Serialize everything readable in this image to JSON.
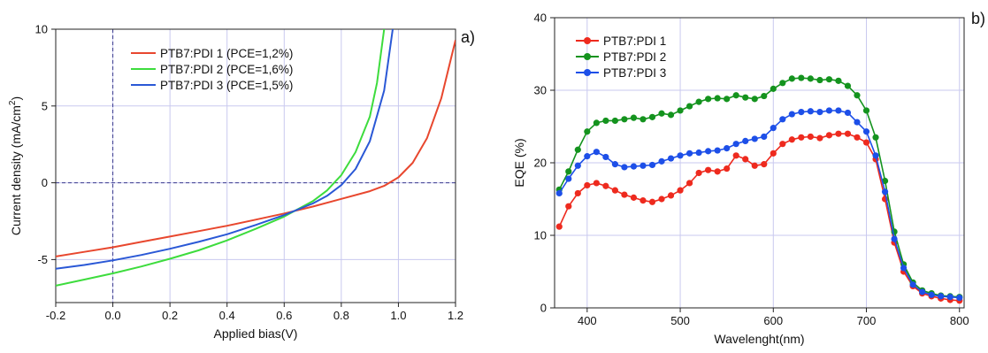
{
  "chart_data": [
    {
      "id": "a",
      "type": "line",
      "panel_label": "a)",
      "xlabel": "Applied bias(V)",
      "ylabel": "Current density (mA/cm",
      "ylabel_sup": "2",
      "ylabel_end": ")",
      "xlim": [
        -0.2,
        1.2
      ],
      "ylim": [
        -7.8,
        10
      ],
      "xticks": [
        -0.2,
        0.0,
        0.2,
        0.4,
        0.6,
        0.8,
        1.0,
        1.2
      ],
      "xtick_labels": [
        "-0.2",
        "0.0",
        "0.2",
        "0.4",
        "0.6",
        "0.8",
        "1.0",
        "1.2"
      ],
      "yticks": [
        -5,
        0,
        5,
        10
      ],
      "ytick_labels": [
        "-5",
        "0",
        "5",
        "10"
      ],
      "grid": true,
      "legend_position": "top",
      "series": [
        {
          "name": "PTB7:PDI 1 (PCE=1,2%)",
          "color": "#e8472e",
          "x": [
            -0.2,
            -0.1,
            0.0,
            0.1,
            0.2,
            0.3,
            0.4,
            0.5,
            0.6,
            0.7,
            0.8,
            0.9,
            0.95,
            1.0,
            1.05,
            1.1,
            1.15,
            1.2
          ],
          "y": [
            -4.8,
            -4.5,
            -4.2,
            -3.85,
            -3.5,
            -3.15,
            -2.8,
            -2.4,
            -2.0,
            -1.55,
            -1.05,
            -0.55,
            -0.2,
            0.35,
            1.3,
            2.9,
            5.5,
            9.3
          ]
        },
        {
          "name": "PTB7:PDI 2 (PCE=1,6%)",
          "color": "#3ddc3d",
          "x": [
            -0.2,
            -0.1,
            0.0,
            0.1,
            0.2,
            0.3,
            0.4,
            0.5,
            0.6,
            0.7,
            0.75,
            0.8,
            0.85,
            0.9,
            0.925,
            0.95
          ],
          "y": [
            -6.7,
            -6.3,
            -5.9,
            -5.45,
            -4.95,
            -4.4,
            -3.75,
            -3.0,
            -2.2,
            -1.2,
            -0.5,
            0.5,
            2.0,
            4.3,
            6.5,
            10.0
          ]
        },
        {
          "name": "PTB7:PDI 3 (PCE=1,5%)",
          "color": "#2a58d6",
          "x": [
            -0.2,
            -0.1,
            0.0,
            0.1,
            0.2,
            0.3,
            0.4,
            0.5,
            0.6,
            0.7,
            0.75,
            0.8,
            0.85,
            0.9,
            0.95,
            0.98
          ],
          "y": [
            -5.6,
            -5.35,
            -5.05,
            -4.7,
            -4.3,
            -3.85,
            -3.35,
            -2.75,
            -2.1,
            -1.35,
            -0.85,
            -0.15,
            0.9,
            2.7,
            6.0,
            10.0
          ]
        }
      ]
    },
    {
      "id": "b",
      "type": "line",
      "panel_label": "b)",
      "xlabel": "Wavelenght(nm)",
      "ylabel": "EQE (%)",
      "xlim": [
        365,
        805
      ],
      "ylim": [
        0,
        40
      ],
      "xticks": [
        400,
        500,
        600,
        700,
        800
      ],
      "xtick_labels": [
        "400",
        "500",
        "600",
        "700",
        "800"
      ],
      "yticks": [
        0,
        10,
        20,
        30,
        40
      ],
      "ytick_labels": [
        "0",
        "10",
        "20",
        "30",
        "40"
      ],
      "grid": true,
      "legend_position": "top-left",
      "markers": true,
      "series": [
        {
          "name": "PTB7:PDI 1",
          "color": "#ee2a1e",
          "x": [
            370,
            380,
            390,
            400,
            410,
            420,
            430,
            440,
            450,
            460,
            470,
            480,
            490,
            500,
            510,
            520,
            530,
            540,
            550,
            560,
            570,
            580,
            590,
            600,
            610,
            620,
            630,
            640,
            650,
            660,
            670,
            680,
            690,
            700,
            710,
            720,
            730,
            740,
            750,
            760,
            770,
            780,
            790,
            800
          ],
          "y": [
            11.2,
            14.0,
            15.8,
            16.9,
            17.2,
            16.8,
            16.2,
            15.6,
            15.2,
            14.8,
            14.6,
            15.0,
            15.5,
            16.2,
            17.2,
            18.6,
            19.0,
            18.8,
            19.2,
            21.0,
            20.5,
            19.6,
            19.8,
            21.3,
            22.6,
            23.2,
            23.5,
            23.6,
            23.4,
            23.8,
            24.0,
            24.0,
            23.5,
            22.8,
            20.5,
            15.0,
            9.0,
            5.0,
            3.0,
            2.0,
            1.6,
            1.3,
            1.1,
            1.0
          ]
        },
        {
          "name": "PTB7:PDI 2",
          "color": "#14931e",
          "x": [
            370,
            380,
            390,
            400,
            410,
            420,
            430,
            440,
            450,
            460,
            470,
            480,
            490,
            500,
            510,
            520,
            530,
            540,
            550,
            560,
            570,
            580,
            590,
            600,
            610,
            620,
            630,
            640,
            650,
            660,
            670,
            680,
            690,
            700,
            710,
            720,
            730,
            740,
            750,
            760,
            770,
            780,
            790,
            800
          ],
          "y": [
            16.3,
            18.8,
            21.8,
            24.3,
            25.5,
            25.8,
            25.8,
            26.0,
            26.2,
            26.0,
            26.3,
            26.8,
            26.6,
            27.2,
            27.8,
            28.4,
            28.8,
            28.9,
            28.8,
            29.3,
            29.0,
            28.8,
            29.2,
            30.2,
            31.0,
            31.6,
            31.7,
            31.6,
            31.4,
            31.5,
            31.3,
            30.6,
            29.3,
            27.2,
            23.5,
            17.5,
            10.5,
            6.0,
            3.5,
            2.4,
            2.0,
            1.7,
            1.6,
            1.5
          ]
        },
        {
          "name": "PTB7:PDI 3",
          "color": "#1d4fe8",
          "x": [
            370,
            380,
            390,
            400,
            410,
            420,
            430,
            440,
            450,
            460,
            470,
            480,
            490,
            500,
            510,
            520,
            530,
            540,
            550,
            560,
            570,
            580,
            590,
            600,
            610,
            620,
            630,
            640,
            650,
            660,
            670,
            680,
            690,
            700,
            710,
            720,
            730,
            740,
            750,
            760,
            770,
            780,
            790,
            800
          ],
          "y": [
            15.8,
            17.8,
            19.6,
            20.9,
            21.5,
            20.8,
            19.8,
            19.4,
            19.5,
            19.6,
            19.7,
            20.2,
            20.6,
            21.0,
            21.3,
            21.4,
            21.6,
            21.7,
            22.0,
            22.6,
            23.0,
            23.3,
            23.6,
            24.8,
            26.0,
            26.7,
            27.0,
            27.1,
            27.0,
            27.2,
            27.2,
            26.9,
            25.6,
            24.3,
            21.0,
            16.0,
            9.5,
            5.5,
            3.2,
            2.2,
            1.8,
            1.6,
            1.5,
            1.4
          ]
        }
      ]
    }
  ]
}
